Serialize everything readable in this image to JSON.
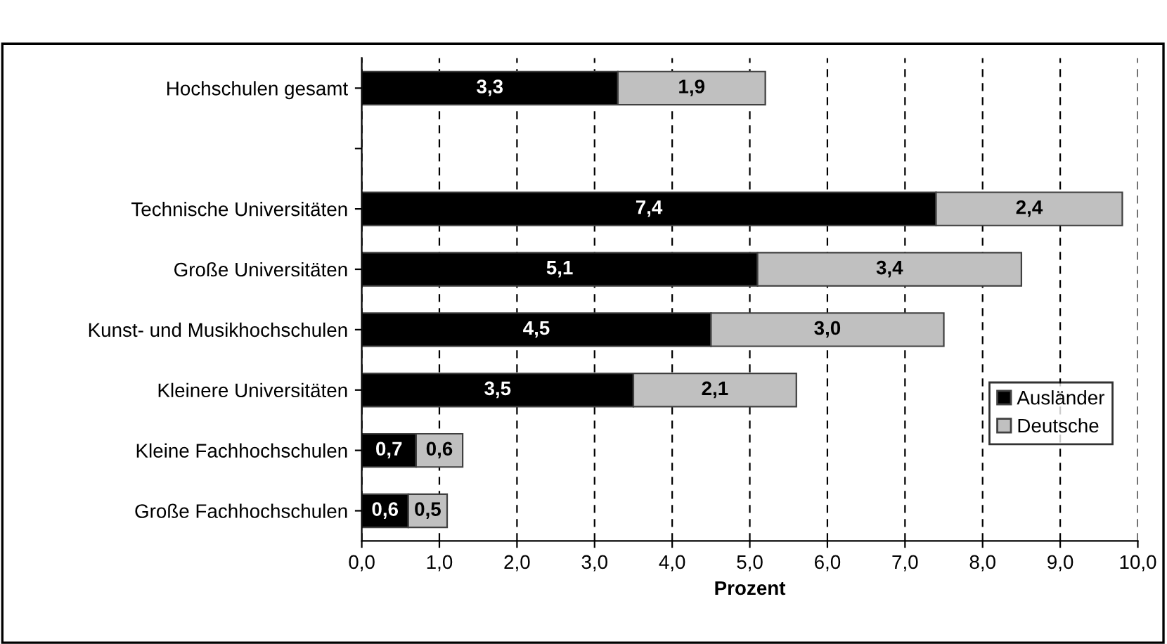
{
  "chart_data": {
    "type": "bar",
    "orientation": "horizontal",
    "stacked": true,
    "xlabel": "Prozent",
    "categories": [
      "Hochschulen gesamt",
      null,
      "Technische Universitäten",
      "Große Universitäten",
      "Kunst- und Musikhochschulen",
      "Kleinere Universitäten",
      "Kleine Fachhochschulen",
      "Große Fachhochschulen"
    ],
    "series": [
      {
        "name": "Ausländer",
        "color": "#000000",
        "values": [
          3.3,
          null,
          7.4,
          5.1,
          4.5,
          3.5,
          0.7,
          0.6
        ],
        "value_labels": [
          "3,3",
          null,
          "7,4",
          "5,1",
          "4,5",
          "3,5",
          "0,7",
          "0,6"
        ]
      },
      {
        "name": "Deutsche",
        "color": "#c0c0c0",
        "values": [
          1.9,
          null,
          2.4,
          3.4,
          3.0,
          2.1,
          0.6,
          0.5
        ],
        "value_labels": [
          "1,9",
          null,
          "2,4",
          "3,4",
          "3,0",
          "2,1",
          "0,6",
          "0,5"
        ]
      }
    ],
    "xlim": [
      0,
      10
    ],
    "xticks": [
      {
        "value": 0,
        "label": "0,0"
      },
      {
        "value": 1,
        "label": "1,0"
      },
      {
        "value": 2,
        "label": "2,0"
      },
      {
        "value": 3,
        "label": "3,0"
      },
      {
        "value": 4,
        "label": "4,0"
      },
      {
        "value": 5,
        "label": "5,0"
      },
      {
        "value": 6,
        "label": "6,0"
      },
      {
        "value": 7,
        "label": "7,0"
      },
      {
        "value": 8,
        "label": "8,0"
      },
      {
        "value": 9,
        "label": "9,0"
      },
      {
        "value": 10,
        "label": "10,0"
      }
    ],
    "grid": "x",
    "legend": "bottom right"
  }
}
